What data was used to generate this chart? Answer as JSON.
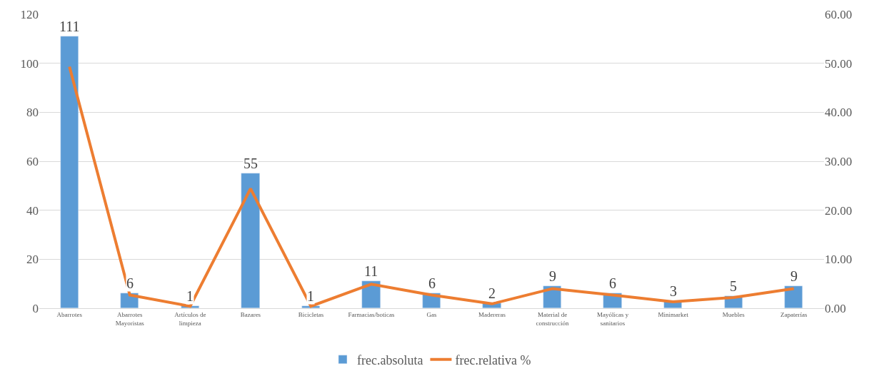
{
  "chart_data": {
    "type": "bar",
    "categories": [
      "Abarrotes",
      "Abarrotes Mayoristas",
      "Artículos de limpieza",
      "Bazares",
      "Bicicletas",
      "Farmacias/boticas",
      "Gas",
      "Madereras",
      "Material de construcción",
      "Mayólicas y sanitarios",
      "Minimarket",
      "Muebles",
      "Zapaterías"
    ],
    "series": [
      {
        "name": "frec.absoluta",
        "color": "#5b9bd5",
        "values": [
          111,
          6,
          1,
          55,
          1,
          11,
          6,
          2,
          9,
          6,
          3,
          5,
          9
        ],
        "value_labels": [
          "111",
          "6",
          "1",
          "55",
          "1",
          "11",
          "6",
          "2",
          "9",
          "6",
          "3",
          "5",
          "9"
        ]
      },
      {
        "name": "frec.relativa %",
        "type": "line",
        "axis": "y2",
        "color": "#ed7d31",
        "values": [
          49.3,
          2.7,
          0.4,
          24.4,
          0.4,
          4.9,
          2.7,
          0.9,
          4.0,
          2.7,
          1.3,
          2.2,
          4.0
        ]
      }
    ],
    "ylim": [
      0,
      120
    ],
    "yticks": [
      0,
      20,
      40,
      60,
      80,
      100,
      120
    ],
    "y2lim": [
      0,
      60
    ],
    "y2ticks": [
      {
        "value": 0,
        "label": "0.00"
      },
      {
        "value": 10,
        "label": "10.00"
      },
      {
        "value": 20,
        "label": "20.00"
      },
      {
        "value": 30,
        "label": "30.00"
      },
      {
        "value": 40,
        "label": "40.00"
      },
      {
        "value": 50,
        "label": "50.00"
      },
      {
        "value": 60,
        "label": "60.00"
      }
    ],
    "grid": "y",
    "legend": "bottom",
    "marker": "none",
    "line_style": "solid"
  }
}
